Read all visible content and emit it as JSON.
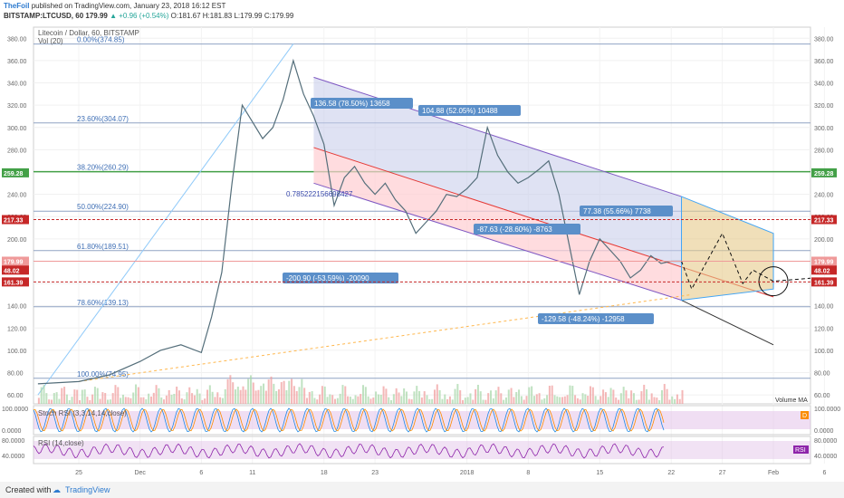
{
  "header": {
    "user": "TheFoil",
    "published": "published on TradingView.com, January 23, 2018 16:12 EST",
    "symbol": "BITSTAMP:LTCUSD, 60",
    "last": "179.99",
    "change": "▲ +0.96 (+0.54%)",
    "ohlc": "O:181.67 H:181.83 L:179.99 C:179.99"
  },
  "footer": {
    "created_with": "Created with",
    "brand": "TradingView"
  },
  "chart_data": {
    "type": "line",
    "title": "Litecoin / Dollar, 60, BITSTAMP",
    "volume_label": "Vol (20)",
    "ylim": [
      52,
      390
    ],
    "y_ticks": [
      "380.00",
      "360.00",
      "340.00",
      "320.00",
      "300.00",
      "280.00",
      "260.00",
      "240.00",
      "220.00",
      "200.00",
      "180.00",
      "160.00",
      "140.00",
      "120.00",
      "100.00",
      "80.00",
      "60.00"
    ],
    "y_tick_values": [
      380,
      360,
      340,
      320,
      300,
      280,
      260,
      240,
      220,
      200,
      180,
      160,
      140,
      120,
      100,
      80,
      60
    ],
    "x_labels": [
      "25",
      "Dec",
      "6",
      "11",
      "18",
      "23",
      "2018",
      "8",
      "15",
      "22",
      "27",
      "Feb",
      "6"
    ],
    "x_positions_days": [
      0,
      6,
      12,
      17,
      24,
      29,
      38,
      44,
      51,
      58,
      63,
      68,
      73
    ],
    "x_start": "2017-11-25",
    "series": [
      {
        "name": "LTCUSD",
        "x_days": [
          -4,
          0,
          3,
          6,
          8,
          10,
          12,
          13,
          14,
          15,
          16,
          17,
          18,
          19,
          20,
          21,
          22,
          23,
          24,
          25,
          26,
          27,
          28,
          29,
          30,
          31,
          32,
          33,
          34,
          35,
          36,
          37,
          38,
          39,
          40,
          41,
          42,
          43,
          44,
          45,
          46,
          47,
          48,
          49,
          50,
          51,
          52,
          53,
          54,
          55,
          56,
          57,
          58,
          59
        ],
        "values": [
          70,
          72,
          78,
          90,
          100,
          105,
          98,
          130,
          170,
          250,
          320,
          305,
          290,
          300,
          325,
          360,
          330,
          310,
          285,
          230,
          255,
          265,
          250,
          240,
          250,
          235,
          225,
          205,
          215,
          225,
          240,
          238,
          245,
          255,
          300,
          275,
          260,
          250,
          255,
          262,
          270,
          240,
          195,
          150,
          180,
          200,
          190,
          180,
          165,
          172,
          185,
          178,
          179.99,
          179.99
        ]
      }
    ],
    "fib_levels": [
      {
        "label": "0.00%(374.85)",
        "value": 374.85
      },
      {
        "label": "23.60%(304.07)",
        "value": 304.07
      },
      {
        "label": "38.20%(260.29)",
        "value": 260.29
      },
      {
        "label": "50.00%(224.90)",
        "value": 224.9
      },
      {
        "label": "61.80%(189.51)",
        "value": 189.51
      },
      {
        "label": "78.60%(139.13)",
        "value": 139.13
      },
      {
        "label": "100.00%(74.95)",
        "value": 74.95
      }
    ],
    "price_tags": [
      {
        "label": "259.28",
        "value": 259.28,
        "color": "#43a047"
      },
      {
        "label": "217.33",
        "value": 217.33,
        "color": "#c62828"
      },
      {
        "label": "179.99",
        "value": 179.99,
        "color": "#ef9a9a"
      },
      {
        "label": "48.02",
        "value": 48.02,
        "color": "#c62828"
      },
      {
        "label": "161.39",
        "value": 161.39,
        "color": "#c62828"
      }
    ],
    "annotations": [
      {
        "text": "136.58 (78.50%) 13658"
      },
      {
        "text": "104.88 (52.05%) 10488"
      },
      {
        "text": "0.785222156698427"
      },
      {
        "text": "77.38 (55.66%) 7738"
      },
      {
        "text": "-87.63 (-28.60%) -8763"
      },
      {
        "text": "-200.90 (-53.59%) -20090"
      },
      {
        "text": "-129.58 (-48.24%) -12958"
      }
    ],
    "volume_ma_label": "Volume MA",
    "stoch": {
      "label": "Stoch RSI (3,3,14,14,close)",
      "ticks": [
        "100.0000",
        "0.0000"
      ],
      "tag": "D"
    },
    "rsi": {
      "label": "RSI (14,close)",
      "ticks": [
        "80.0000",
        "40.0000"
      ],
      "tag": "RSI"
    }
  }
}
